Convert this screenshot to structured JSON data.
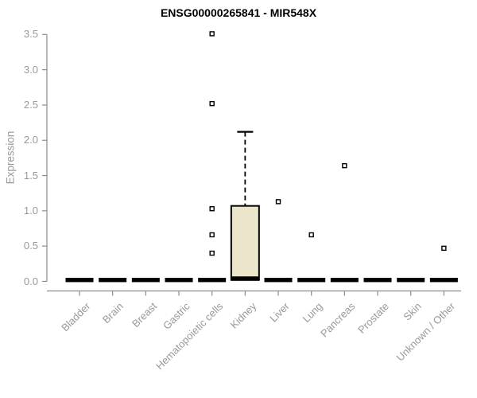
{
  "window": {
    "background": "#FFFFFF"
  },
  "chart_data": {
    "type": "box",
    "title": "ENSG00000265841 - MIR548X",
    "xlabel": "",
    "ylabel": "Expression",
    "ylim": [
      0,
      3.5
    ],
    "ytick_labels": [
      "0.0",
      "0.5",
      "1.0",
      "1.5",
      "2.0",
      "2.5",
      "3.0",
      "3.5"
    ],
    "grid": false,
    "legend": "none",
    "axes_style": "left and bottom only, gray",
    "categories": [
      "Bladder",
      "Brain",
      "Breast",
      "Gastric",
      "Hematopoietic cells",
      "Kidney",
      "Liver",
      "Lung",
      "Pancreas",
      "Prostate",
      "Skin",
      "Unknown / Other"
    ],
    "boxes": [
      {
        "category": "Bladder",
        "q1": 0,
        "median": 0.02,
        "q3": 0.03,
        "whisker_low": 0,
        "whisker_high": 0.03,
        "outliers": []
      },
      {
        "category": "Brain",
        "q1": 0,
        "median": 0.02,
        "q3": 0.03,
        "whisker_low": 0,
        "whisker_high": 0.03,
        "outliers": []
      },
      {
        "category": "Breast",
        "q1": 0,
        "median": 0.02,
        "q3": 0.03,
        "whisker_low": 0,
        "whisker_high": 0.03,
        "outliers": []
      },
      {
        "category": "Gastric",
        "q1": 0,
        "median": 0.02,
        "q3": 0.03,
        "whisker_low": 0,
        "whisker_high": 0.03,
        "outliers": []
      },
      {
        "category": "Hematopoietic cells",
        "q1": 0,
        "median": 0.02,
        "q3": 0.03,
        "whisker_low": 0,
        "whisker_high": 0.03,
        "outliers": [
          0.4,
          0.66,
          1.03,
          2.52,
          3.51
        ]
      },
      {
        "category": "Kidney",
        "q1": 0.02,
        "median": 0.04,
        "q3": 1.07,
        "whisker_low": 0,
        "whisker_high": 2.12,
        "outliers": []
      },
      {
        "category": "Liver",
        "q1": 0,
        "median": 0.02,
        "q3": 0.03,
        "whisker_low": 0,
        "whisker_high": 0.03,
        "outliers": [
          1.13
        ]
      },
      {
        "category": "Lung",
        "q1": 0,
        "median": 0.02,
        "q3": 0.03,
        "whisker_low": 0,
        "whisker_high": 0.03,
        "outliers": [
          0.66
        ]
      },
      {
        "category": "Pancreas",
        "q1": 0,
        "median": 0.02,
        "q3": 0.03,
        "whisker_low": 0,
        "whisker_high": 0.03,
        "outliers": [
          1.64
        ]
      },
      {
        "category": "Prostate",
        "q1": 0,
        "median": 0.02,
        "q3": 0.03,
        "whisker_low": 0,
        "whisker_high": 0.03,
        "outliers": []
      },
      {
        "category": "Skin",
        "q1": 0,
        "median": 0.02,
        "q3": 0.03,
        "whisker_low": 0,
        "whisker_high": 0.03,
        "outliers": []
      },
      {
        "category": "Unknown / Other",
        "q1": 0,
        "median": 0.02,
        "q3": 0.03,
        "whisker_low": 0,
        "whisker_high": 0.03,
        "outliers": [
          0.47
        ]
      }
    ],
    "colors": {
      "box_fill": "#EBE5CB",
      "box_border": "#000000",
      "median": "#000000",
      "whisker": "#000000",
      "outlier_fill": "#FFFFFF",
      "outlier_border": "#000000",
      "axis": "#8C8C8C",
      "tick_label": "#999999",
      "title": "#000000",
      "background": "#FFFFFF"
    }
  }
}
